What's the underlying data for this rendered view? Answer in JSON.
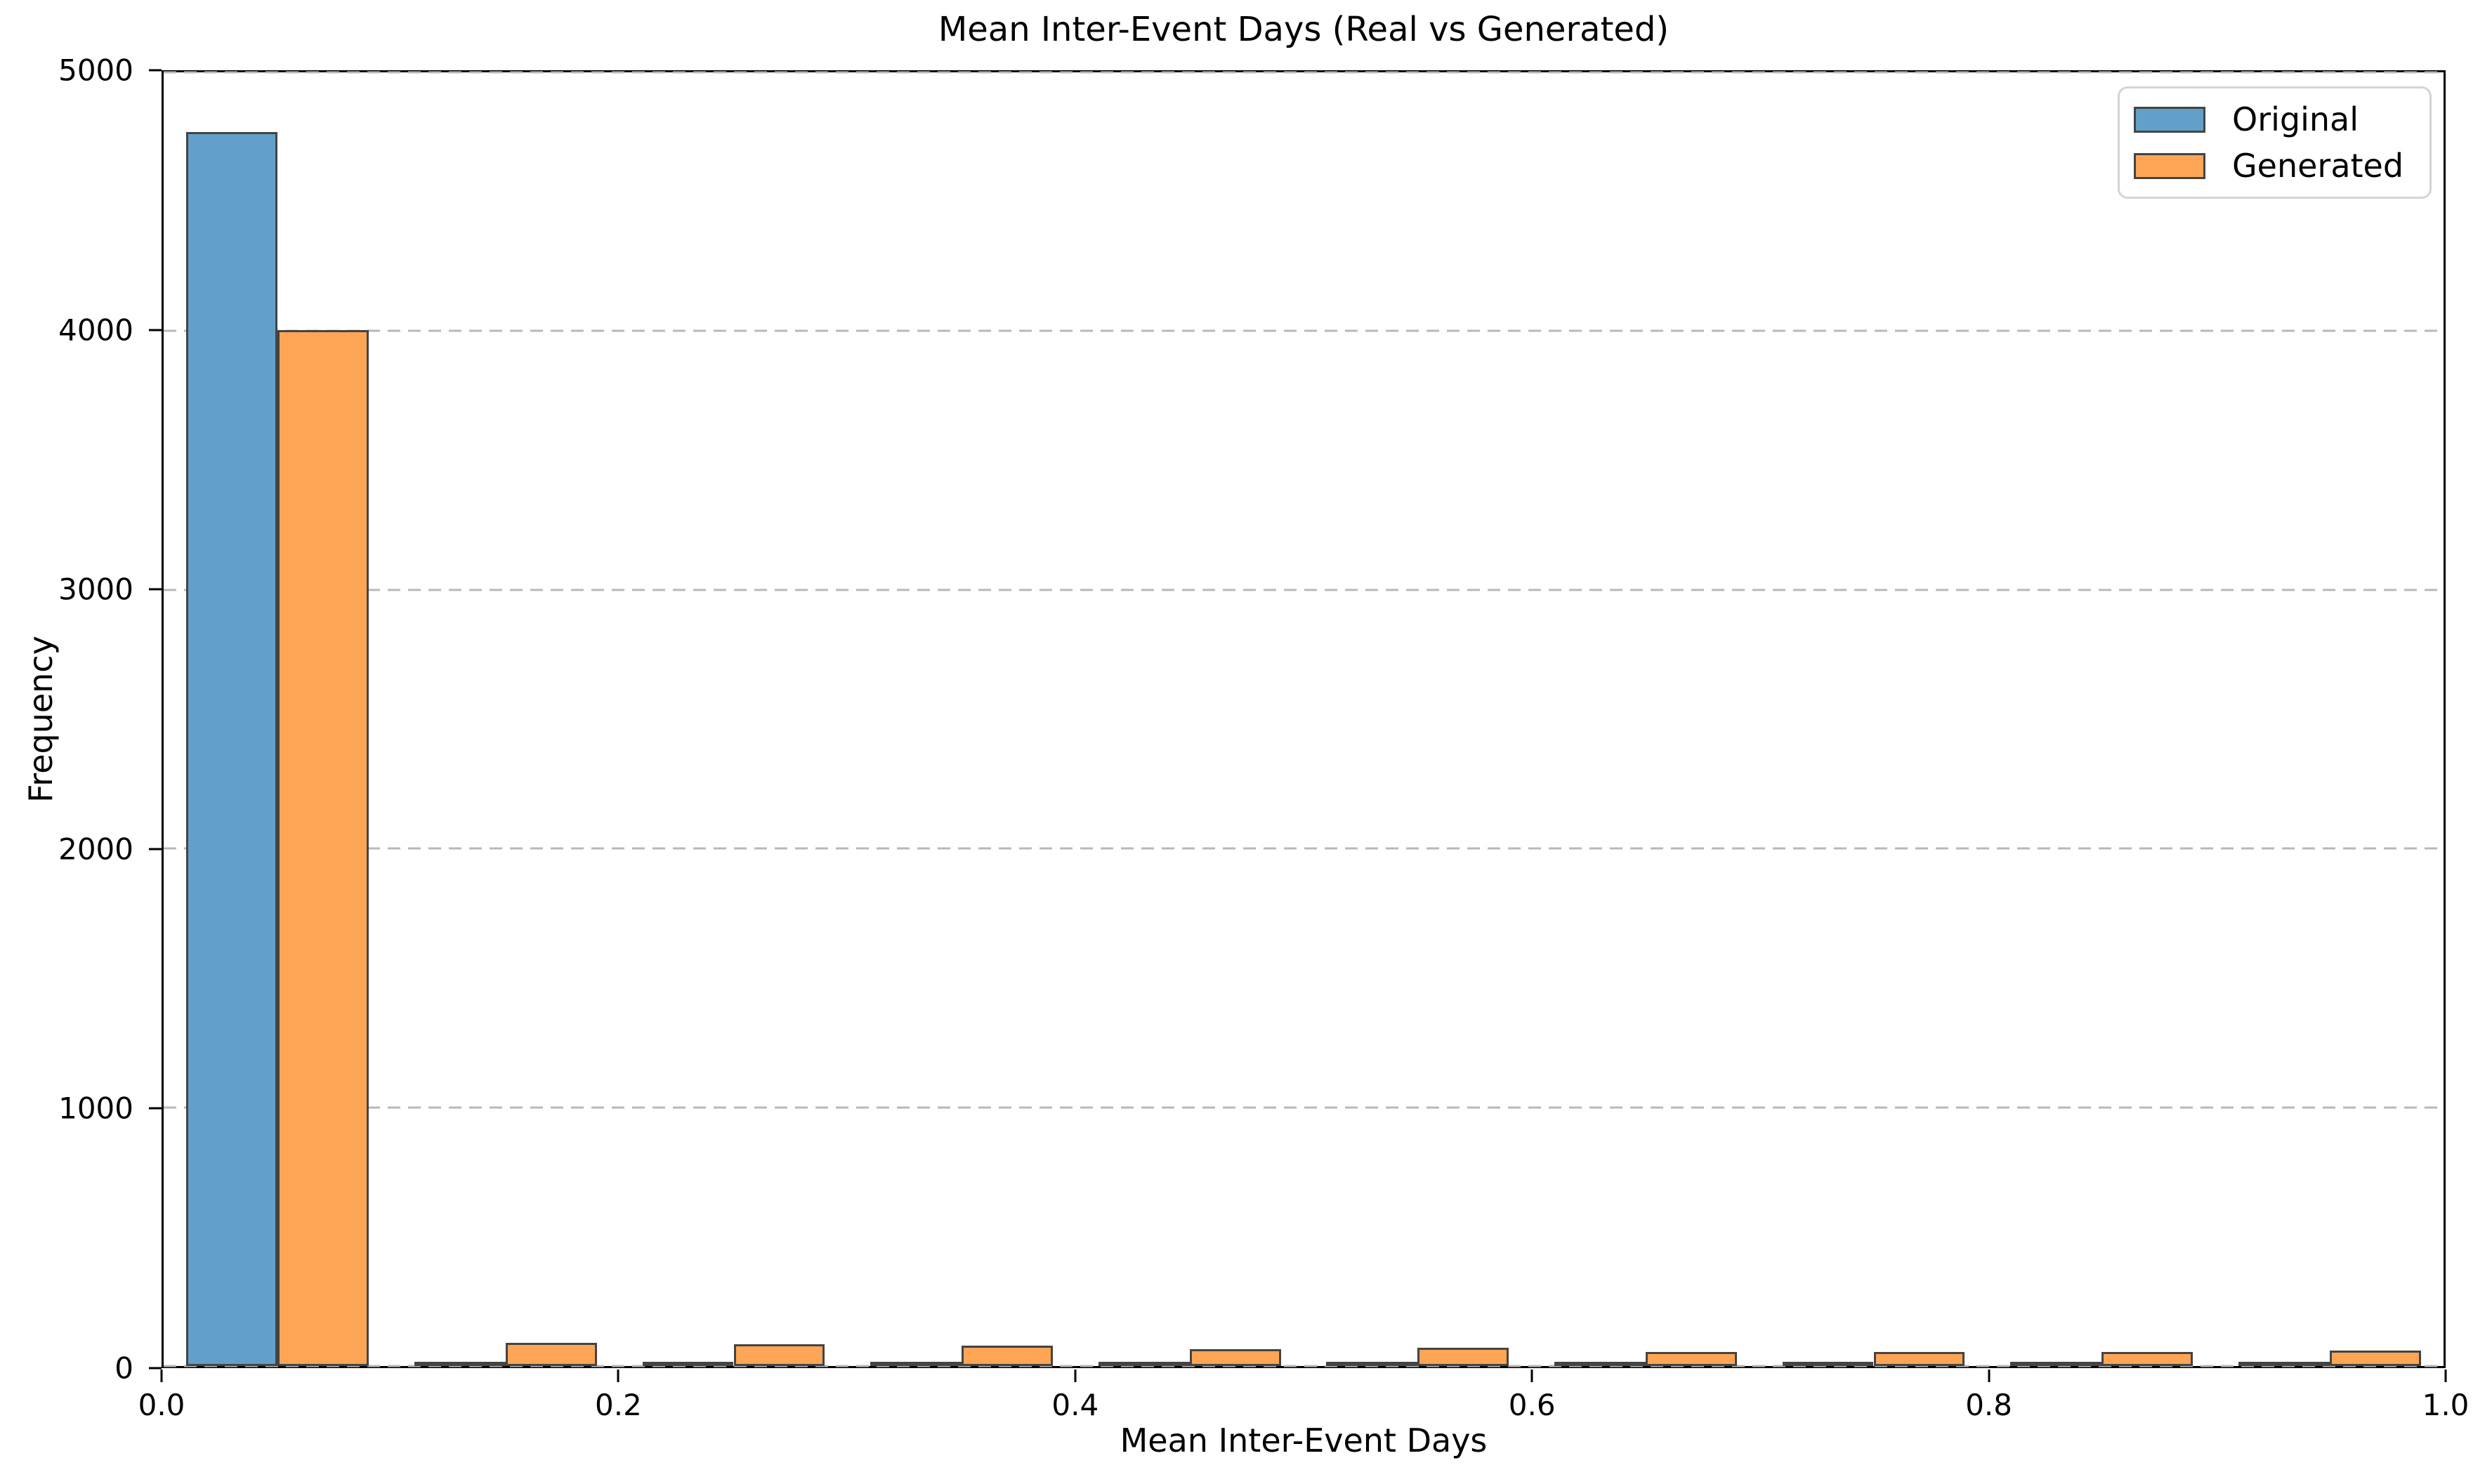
{
  "figure": {
    "background": "#ffffff",
    "spine_color": "#000000"
  },
  "chart_data": {
    "type": "bar",
    "variant": "grouped-histogram",
    "title": "Mean Inter-Event Days (Real vs Generated)",
    "xlabel": "Mean Inter-Event Days",
    "ylabel": "Frequency",
    "xlim": [
      0.0,
      1.0
    ],
    "ylim": [
      0,
      5000
    ],
    "xticks": [
      0.0,
      0.2,
      0.4,
      0.6,
      0.8,
      1.0
    ],
    "xtick_labels": [
      "0.0",
      "0.2",
      "0.4",
      "0.6",
      "0.8",
      "1.0"
    ],
    "yticks": [
      0,
      1000,
      2000,
      3000,
      4000,
      5000
    ],
    "ytick_labels": [
      "0",
      "1000",
      "2000",
      "3000",
      "4000",
      "5000"
    ],
    "bins": {
      "start": 0.0,
      "end": 1.0,
      "count": 10,
      "width": 0.1
    },
    "series": [
      {
        "name": "Original",
        "fill": "#62A0CA",
        "edge": "#444444",
        "values": [
          4770,
          5,
          5,
          5,
          5,
          5,
          5,
          5,
          5,
          5
        ]
      },
      {
        "name": "Generated",
        "fill": "#FFA556",
        "edge": "#444444",
        "values": [
          4005,
          90,
          85,
          80,
          65,
          70,
          55,
          55,
          55,
          60
        ]
      }
    ],
    "legend_position": "upper-right",
    "grid": {
      "axis": "y",
      "style": "dashed",
      "color": "#b8b8b8"
    }
  }
}
